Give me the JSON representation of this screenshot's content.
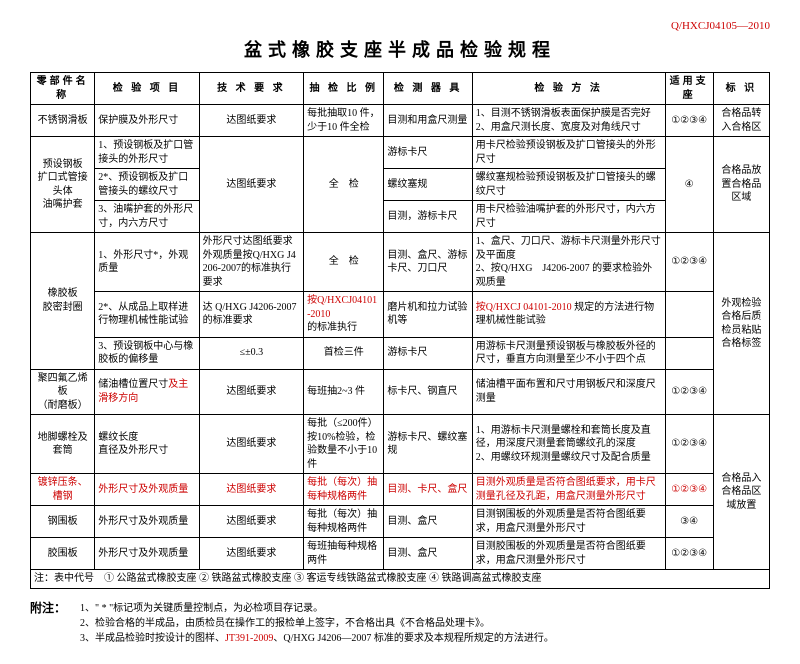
{
  "doc_code": "Q/HXCJ04105—2010",
  "title": "盆式橡胶支座半成品检验规程",
  "headers": {
    "part": "零部件名称",
    "item": "检 验 项 目",
    "tech": "技 术 要 求",
    "sample": "抽 检 比 例",
    "tool": "检 测 器 具",
    "method": "检 验 方 法",
    "scope": "适用支座",
    "mark": "标 识"
  },
  "rows": {
    "r1": {
      "part": "不锈钢滑板",
      "item": "保护膜及外形尺寸",
      "tech": "达图纸要求",
      "sample": "每批抽取10 件，少于10 件全检",
      "tool": "目测和用盒尺测量",
      "method": "1、目测不锈钢滑板表面保护膜是否完好\n2、用盒尺测长度、宽度及对角线尺寸",
      "scope": "①②③④",
      "mark": "合格品转入合格区"
    },
    "r2": {
      "part": "预设钢板\n扩口式管接头体\n油嘴护套",
      "item1": "1、预设钢板及扩口管接头的外形尺寸",
      "tool1": "游标卡尺",
      "method1": "用卡尺检验预设钢板及扩口管接头的外形尺寸",
      "item2": "2*、预设钢板及扩口管接头的螺纹尺寸",
      "tech2": "达图纸要求",
      "sample2": "全　检",
      "tool2": "螺纹塞规",
      "method2": "螺纹塞规检验预设钢板及扩口管接头的螺纹尺寸",
      "scope2": "④",
      "mark2": "合格品放置合格品区域",
      "item3": "3、油嘴护套的外形尺寸，内六方尺寸",
      "tool3": "目测，游标卡尺",
      "method3": "用卡尺检验油嘴护套的外形尺寸，内六方尺寸"
    },
    "r3": {
      "part": "橡胶板\n胶密封圈",
      "item1": "1、外形尺寸*，外观质量",
      "tech1": "外形尺寸达图纸要求\n外观质量按Q/HXG J4206-2007的标准执行要求",
      "sample1": "全　检",
      "tool1": "目测、盒尺、游标卡尺、刀口尺",
      "method1": "1、盒尺、刀口尺、游标卡尺测量外形尺寸及平面度\n2、按Q/HXG　J4206-2007 的要求检验外观质量",
      "scope1": "①②③④",
      "item2": "2*、从成品上取样进行物理机械性能试验",
      "tech2": "达 Q/HXG J4206-2007 的标准要求",
      "sample2_a": "按Q/HXCJ04101-2010",
      "sample2_b": "的标准执行",
      "tool2": "磨片机和拉力试验机等",
      "method2_a": "按Q/HXCJ 04101-2010",
      "method2_b": "规定的方法进行物理机械性能试验",
      "item3": "3、预设钢板中心与橡胶板的偏移量",
      "tech3": "≤±0.3",
      "sample3": "首检三件",
      "tool3": "游标卡尺",
      "method3": "用游标卡尺测量预设钢板与橡胶板外径的尺寸，垂直方向测量至少不小于四个点",
      "mark": "外观检验合格后质检员粘贴合格标签"
    },
    "r4": {
      "part": "聚四氟乙烯板\n（耐磨板）",
      "item_a": "储油槽位置尺寸",
      "item_b": "及主滑移方向",
      "tech": "达图纸要求",
      "sample": "每班抽2~3 件",
      "tool": "标卡尺、钢直尺",
      "method": "储油槽平面布置和尺寸用钢板尺和深度尺测量",
      "scope": "①②③④"
    },
    "r5": {
      "part": "地脚螺栓及套筒",
      "item": "螺纹长度\n直径及外形尺寸",
      "tech": "达图纸要求",
      "sample": "每批（≤200件）按10%检验，检验数量不小于10 件",
      "tool": "游标卡尺、螺纹塞规",
      "method": "1、用游标卡尺测量螺栓和套筒长度及直径，用深度尺测量套筒螺纹孔的深度\n2、用螺纹环规测量螺纹尺寸及配合质量",
      "scope": "①②③④",
      "mark": "合格品入合格品区域放置"
    },
    "r6": {
      "part": "镀锌压条、槽钢",
      "item": "外形尺寸及外观质量",
      "tech": "达图纸要求",
      "sample": "每批（每次）抽每种规格两件",
      "tool": "目测、卡尺、盒尺",
      "method": "目测外观质量是否符合图纸要求，用卡尺测量孔径及孔距，用盒尺测量外形尺寸",
      "scope": "①②③④"
    },
    "r7": {
      "part": "钢围板",
      "item": "外形尺寸及外观质量",
      "tech": "达图纸要求",
      "sample": "每批（每次）抽每种规格两件",
      "tool": "目测、盒尺",
      "method": "目测钢围板的外观质量是否符合图纸要求，用盒尺测量外形尺寸",
      "scope": "③④"
    },
    "r8": {
      "part": "胶围板",
      "item": "外形尺寸及外观质量",
      "tech": "达图纸要求",
      "sample": "每班抽每种规格两件",
      "tool": "目测、盒尺",
      "method": "目测胶围板的外观质量是否符合图纸要求，用盒尺测量外形尺寸",
      "scope": "①②③④"
    }
  },
  "note_row": "注：表中代号　① 公路盆式橡胶支座 ② 铁路盆式橡胶支座 ③ 客运专线铁路盆式橡胶支座 ④ 铁路调高盆式橡胶支座",
  "appendix_label": "附注：",
  "appendix": {
    "a1": "1、\" * \"标记项为关键质量控制点，为必检项目存记录。",
    "a2_pre": "2、检验合格的半成品，由质检员在操作工的报检单上签字，不合格出具《不合格品处理卡》。",
    "a3_pre": "3、半成品检验时按设计的图样、",
    "a3_red": "JT391-2009",
    "a3_post": "、Q/HXG J4206—2007 标准的要求及本规程所规定的方法进行。"
  }
}
